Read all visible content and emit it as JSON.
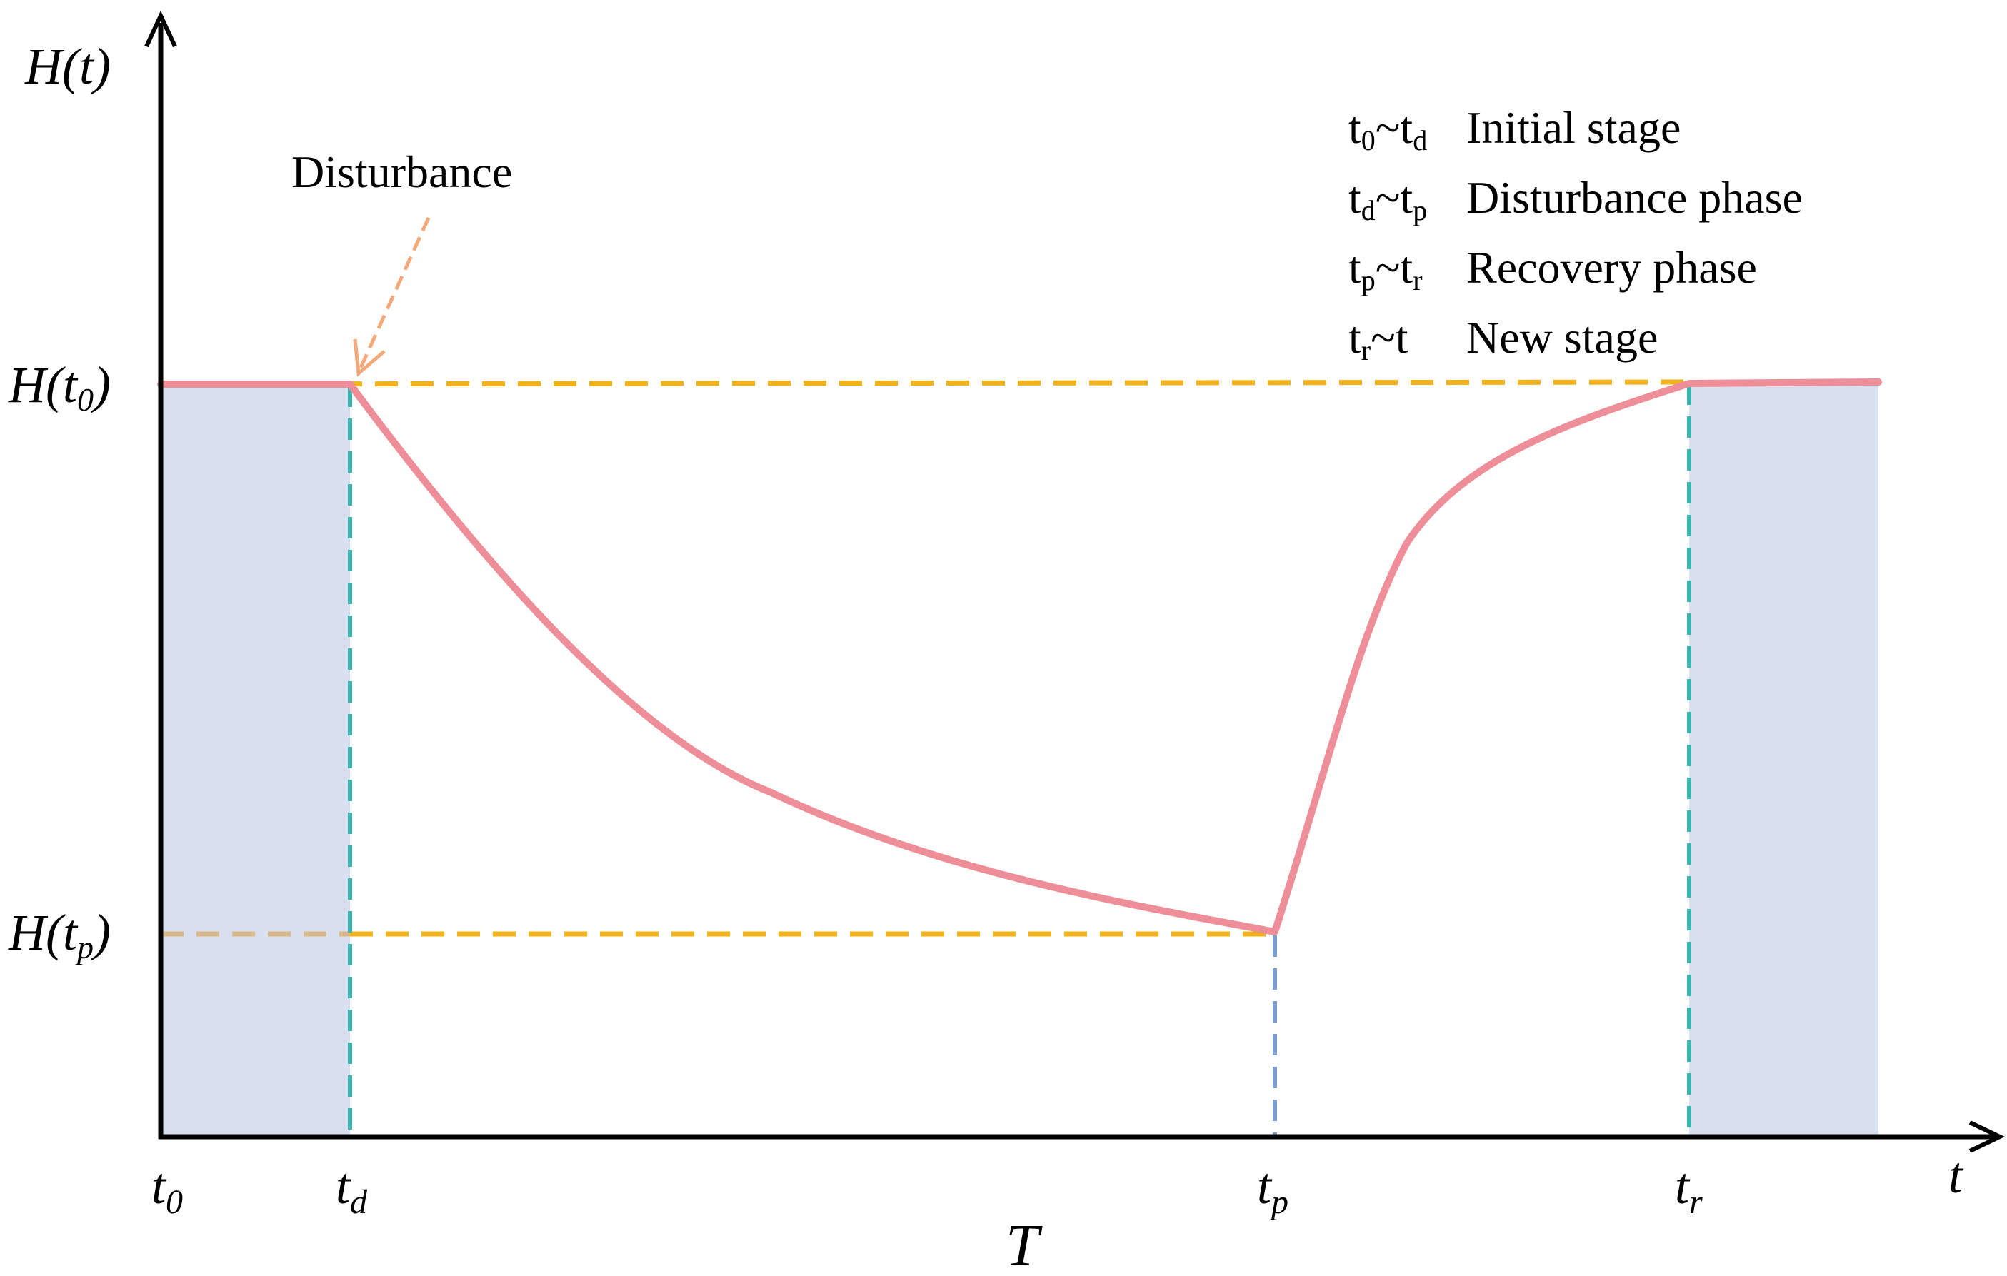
{
  "axes": {
    "y_label_main": "H",
    "y_label_arg": "(t)",
    "x_label": "t",
    "x_caption": "T"
  },
  "y_ticks": [
    {
      "h": "H(",
      "sub": "t",
      "subsub": "0",
      "close": ")"
    },
    {
      "h": "H(",
      "sub": "t",
      "subsub": "p",
      "close": ")"
    }
  ],
  "x_ticks": [
    {
      "main": "t",
      "sub": "0"
    },
    {
      "main": "t",
      "sub": "d"
    },
    {
      "main": "t",
      "sub": "p"
    },
    {
      "main": "t",
      "sub": "r"
    }
  ],
  "annotation": {
    "text": "Disturbance"
  },
  "legend": [
    {
      "a": "t",
      "a_sub": "0",
      "b": "t",
      "b_sub": "d",
      "desc": "Initial stage"
    },
    {
      "a": "t",
      "a_sub": "d",
      "b": "t",
      "b_sub": "p",
      "desc": "Disturbance phase"
    },
    {
      "a": "t",
      "a_sub": "p",
      "b": "t",
      "b_sub": "r",
      "desc": "Recovery phase"
    },
    {
      "a": "t",
      "a_sub": "r",
      "b": "t",
      "b_sub": "",
      "desc": "New stage"
    }
  ],
  "legend_separator": "~",
  "colors": {
    "curve": "#EE8E98",
    "fill": "#D8E0F0",
    "h_guide": "#F2B21B",
    "v_guide_side": "#3BB5AE",
    "v_guide_mid": "#7E9DD2",
    "arrow": "#F4A97A",
    "axis": "#000000"
  }
}
